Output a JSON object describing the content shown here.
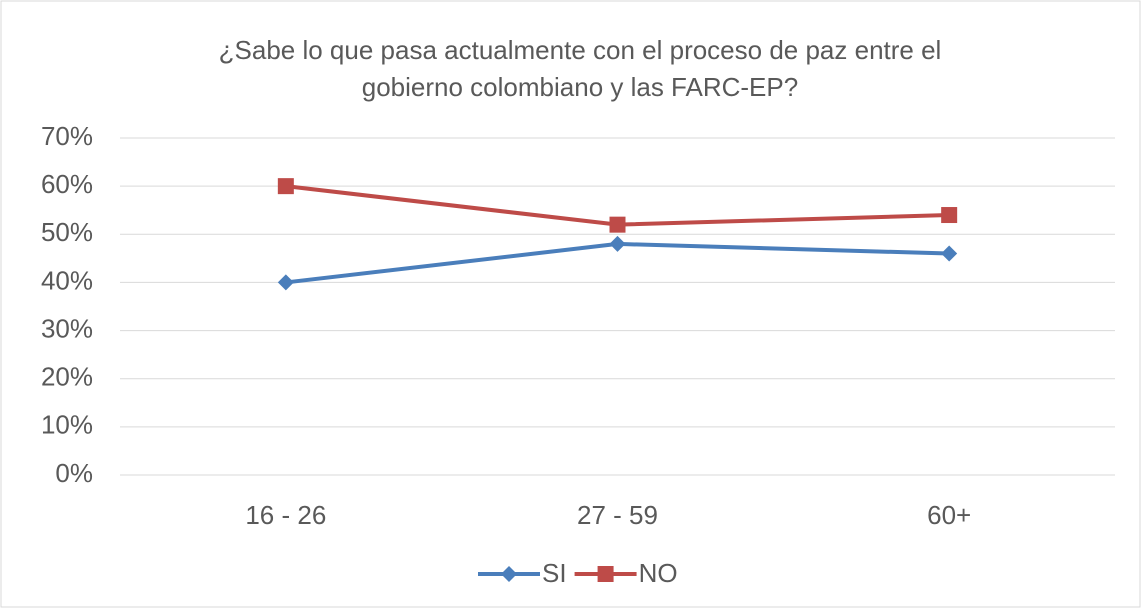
{
  "chart_data": {
    "type": "line",
    "title": [
      "¿Sabe lo que pasa actualmente con el proceso de paz entre el",
      "gobierno colombiano y las FARC-EP?"
    ],
    "categories": [
      "16 -  26",
      "27 - 59",
      "60+"
    ],
    "series": [
      {
        "name": "SI",
        "color": "#4a7ebb",
        "marker": "diamond",
        "values": [
          40,
          48,
          46
        ]
      },
      {
        "name": "NO",
        "color": "#be4b48",
        "marker": "square",
        "values": [
          60,
          52,
          54
        ]
      }
    ],
    "ylim": [
      0,
      70
    ],
    "yticks": [
      {
        "value": 0,
        "label": "0%"
      },
      {
        "value": 10,
        "label": "10%"
      },
      {
        "value": 20,
        "label": "20%"
      },
      {
        "value": 30,
        "label": "30%"
      },
      {
        "value": 40,
        "label": "40%"
      },
      {
        "value": 50,
        "label": "50%"
      },
      {
        "value": 60,
        "label": "60%"
      },
      {
        "value": 70,
        "label": "70%"
      }
    ],
    "grid": true,
    "legend": "bottom"
  }
}
